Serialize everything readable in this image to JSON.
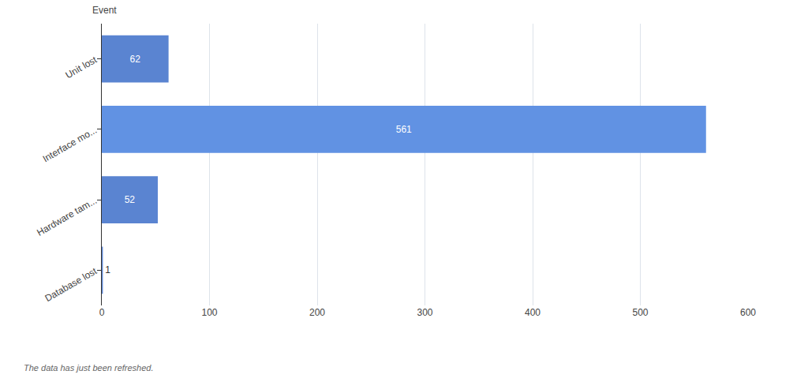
{
  "chart_data": {
    "type": "bar",
    "orientation": "horizontal",
    "ylabel": "Event",
    "categories": [
      "Unit lost",
      "Interface mo...",
      "Hardware tam...",
      "Database lost"
    ],
    "values": [
      62,
      561,
      52,
      1
    ],
    "colors": [
      "#5a84d1",
      "#6192e3",
      "#5a84d1",
      "#5a84d1"
    ],
    "xlim": [
      0,
      600
    ],
    "xticks": [
      0,
      100,
      200,
      300,
      400,
      500,
      600
    ],
    "grid": true,
    "data_labels": true,
    "annotations": [
      "The data has just been refreshed."
    ]
  }
}
